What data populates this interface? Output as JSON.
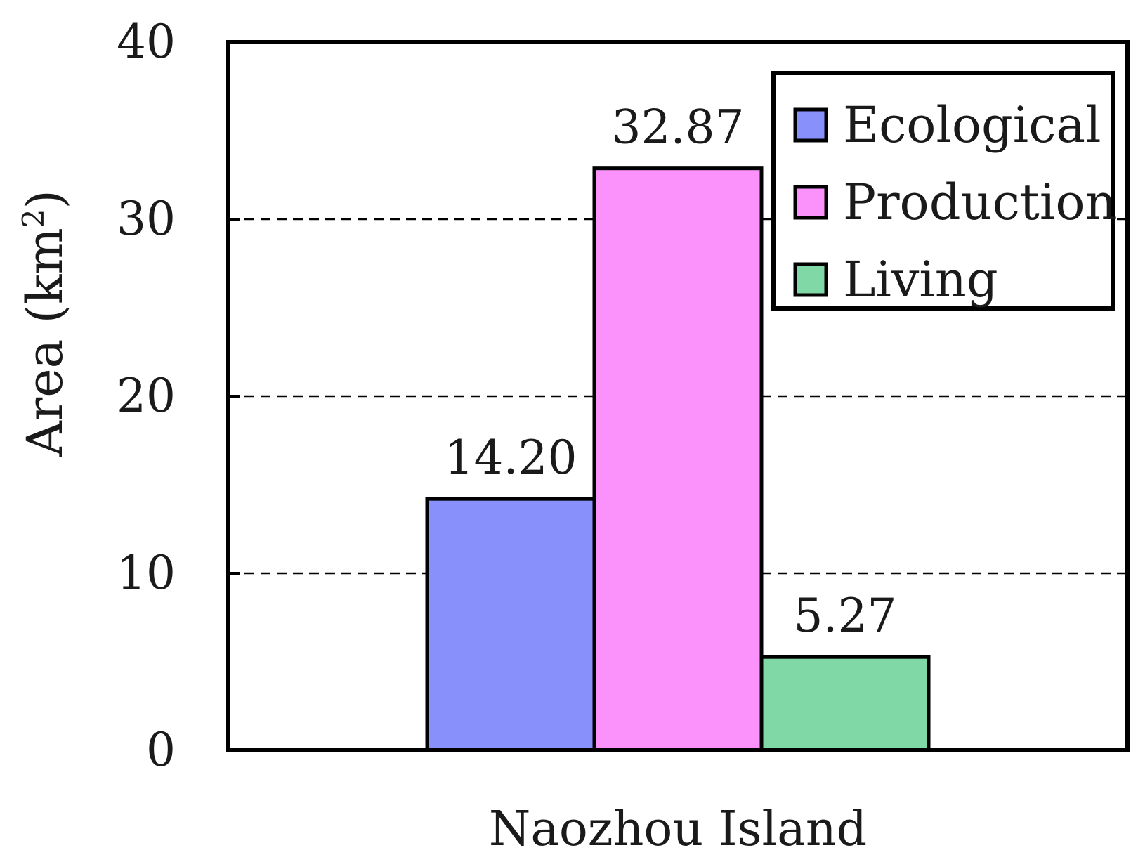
{
  "chart_data": {
    "type": "bar",
    "title": "",
    "xlabel": "Naozhou Island",
    "ylabel": "Area (km",
    "ylabel_superscript": "2",
    "ylabel_close": ")",
    "ylim": [
      0,
      40
    ],
    "yticks": [
      "0",
      "10",
      "20",
      "30",
      "40"
    ],
    "grid": "horizontal dashed",
    "legend_position": "top-right",
    "categories": [
      "Naozhou Island"
    ],
    "series": [
      {
        "name": "Ecological",
        "values": [
          14.2
        ],
        "label": "14.20",
        "color": "#8891fb"
      },
      {
        "name": "Production",
        "values": [
          32.87
        ],
        "label": "32.87",
        "color": "#fb91fb"
      },
      {
        "name": "Living",
        "values": [
          5.27
        ],
        "label": "5.27",
        "color": "#80d8a6"
      }
    ]
  }
}
